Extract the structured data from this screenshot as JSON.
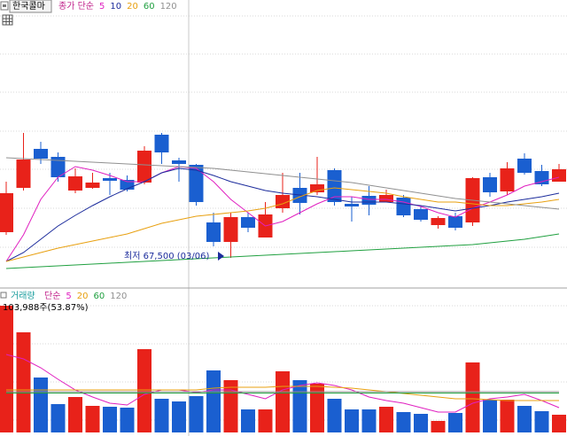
{
  "chart_data": [
    {
      "type": "candlestick",
      "title": "한국콜마",
      "series_label": "종가 단순",
      "up_color": "#e8221a",
      "down_color": "#1a5fd0",
      "ylim": [
        65800,
        82050
      ],
      "open": [
        68950,
        71450,
        73650,
        73200,
        71300,
        71450,
        72000,
        71900,
        71750,
        74450,
        73000,
        72750,
        69500,
        68400,
        69800,
        68650,
        70300,
        71450,
        71200,
        72450,
        70550,
        71000,
        70650,
        70900,
        70250,
        69350,
        69850,
        69500,
        72050,
        71250,
        73100,
        72400,
        71800
      ],
      "close": [
        71150,
        73050,
        73100,
        72050,
        72100,
        71750,
        71850,
        71350,
        73550,
        73450,
        72800,
        70650,
        68400,
        69800,
        69200,
        69950,
        71050,
        70600,
        71650,
        70650,
        70400,
        70500,
        71050,
        69900,
        69650,
        69750,
        69200,
        72000,
        71200,
        72550,
        72300,
        71650,
        72500
      ],
      "high": [
        71800,
        74550,
        74050,
        73450,
        72550,
        72300,
        72300,
        72150,
        73800,
        74550,
        73150,
        72800,
        70050,
        70050,
        70050,
        70650,
        72300,
        72300,
        73200,
        72550,
        70950,
        71550,
        71350,
        71050,
        70450,
        69850,
        70050,
        72050,
        72300,
        72900,
        73400,
        72750,
        72800
      ],
      "low": [
        68800,
        71300,
        72800,
        71800,
        71150,
        71400,
        71050,
        71250,
        71650,
        72800,
        71800,
        70450,
        68150,
        67500,
        68950,
        68650,
        70050,
        69950,
        71050,
        70450,
        69550,
        69900,
        70650,
        69800,
        69550,
        69150,
        69050,
        69300,
        70950,
        71050,
        72200,
        71550,
        71800
      ],
      "series": [
        {
          "name": "5",
          "color": "#e020c0",
          "values": [
            67300,
            68800,
            70800,
            72050,
            72650,
            72450,
            72150,
            71800,
            71800,
            72300,
            72650,
            72550,
            71800,
            70800,
            70050,
            69300,
            69550,
            70050,
            70550,
            70950,
            70950,
            70800,
            70800,
            70650,
            70400,
            70050,
            69800,
            70300,
            70650,
            71050,
            71550,
            71800,
            72050
          ]
        },
        {
          "name": "10",
          "color": "#1c2c9c",
          "values": [
            67300,
            67800,
            68550,
            69300,
            69900,
            70450,
            70950,
            71400,
            71800,
            72300,
            72550,
            72450,
            72150,
            71800,
            71550,
            71300,
            71150,
            71050,
            70950,
            70800,
            70650,
            70650,
            70650,
            70550,
            70450,
            70300,
            70150,
            70300,
            70450,
            70650,
            70800,
            70950,
            71150
          ]
        },
        {
          "name": "20",
          "color": "#e8a010",
          "values": [
            67300,
            67550,
            67800,
            68050,
            68250,
            68450,
            68650,
            68850,
            69150,
            69450,
            69650,
            69850,
            69950,
            70050,
            70150,
            70300,
            70550,
            70950,
            71300,
            71450,
            71350,
            71250,
            71150,
            70950,
            70800,
            70650,
            70650,
            70550,
            70450,
            70450,
            70550,
            70650,
            70800
          ]
        },
        {
          "name": "60",
          "color": "#20a040",
          "values": [
            66900,
            66950,
            67000,
            67050,
            67100,
            67150,
            67200,
            67250,
            67300,
            67350,
            67400,
            67450,
            67500,
            67550,
            67600,
            67650,
            67700,
            67750,
            67800,
            67850,
            67900,
            67950,
            68000,
            68050,
            68100,
            68150,
            68200,
            68250,
            68350,
            68450,
            68550,
            68700,
            68850
          ]
        },
        {
          "name": "120",
          "color": "#909090",
          "values": [
            73150,
            73100,
            73050,
            73000,
            72950,
            72900,
            72850,
            72800,
            72750,
            72700,
            72650,
            72600,
            72550,
            72450,
            72350,
            72250,
            72150,
            72050,
            71950,
            71850,
            71750,
            71600,
            71450,
            71300,
            71150,
            71000,
            70850,
            70750,
            70650,
            70550,
            70450,
            70350,
            70250
          ]
        }
      ],
      "annotation": "최저 67,500 (03/06)"
    },
    {
      "type": "bar",
      "title": "거래량",
      "series_label": "단순",
      "ylim": [
        0,
        821600
      ],
      "values": [
        743600,
        587600,
        322400,
        166400,
        208000,
        156000,
        150800,
        145600,
        488800,
        197600,
        182000,
        213200,
        364000,
        306800,
        135200,
        135200,
        358800,
        306800,
        286000,
        197600,
        135200,
        135200,
        150800,
        119600,
        109200,
        67600,
        114400,
        410800,
        192400,
        192400,
        156000,
        124800,
        103988
      ],
      "series": [
        {
          "name": "5",
          "color": "#e020c0",
          "values": [
            457600,
            431600,
            379600,
            312000,
            249600,
            208000,
            171600,
            161200,
            223600,
            249600,
            249600,
            234000,
            249600,
            249600,
            223600,
            197600,
            249600,
            275600,
            291200,
            275600,
            249600,
            208000,
            187200,
            171600,
            145600,
            119600,
            119600,
            171600,
            197600,
            208000,
            223600,
            187200,
            145600
          ]
        },
        {
          "name": "20",
          "color": "#e8a010",
          "values": [
            249600,
            249600,
            249600,
            249600,
            249600,
            249600,
            249600,
            249600,
            249600,
            249600,
            249600,
            249600,
            260000,
            265200,
            265200,
            265200,
            270400,
            270400,
            270400,
            265200,
            260000,
            249600,
            239200,
            228800,
            218400,
            208000,
            197600,
            197600,
            192400,
            187200,
            187200,
            187200,
            187200
          ]
        },
        {
          "name": "60",
          "color": "#20a040",
          "values": [
            231400,
            231400,
            231400,
            231400,
            231400,
            231400,
            231400,
            231400,
            231400,
            231400,
            231400,
            231400,
            231400,
            231400,
            231400,
            231400,
            231400,
            231400,
            231400,
            231400,
            231400,
            231400,
            231400,
            231400,
            231400,
            231400,
            231400,
            231400,
            231400,
            231400,
            231400,
            231400,
            231400
          ]
        },
        {
          "name": "120",
          "color": "#909090",
          "values": [
            239200,
            239200,
            239200,
            239200,
            239200,
            239200,
            239200,
            239200,
            239200,
            239200,
            239200,
            239200,
            239200,
            239200,
            239200,
            239200,
            239200,
            239200,
            239200,
            239200,
            239200,
            239200,
            239200,
            239200,
            239200,
            239200,
            239200,
            239200,
            239200,
            239200,
            239200,
            239200,
            239200
          ]
        }
      ],
      "annotation": "103,988주(53.87%)"
    }
  ]
}
